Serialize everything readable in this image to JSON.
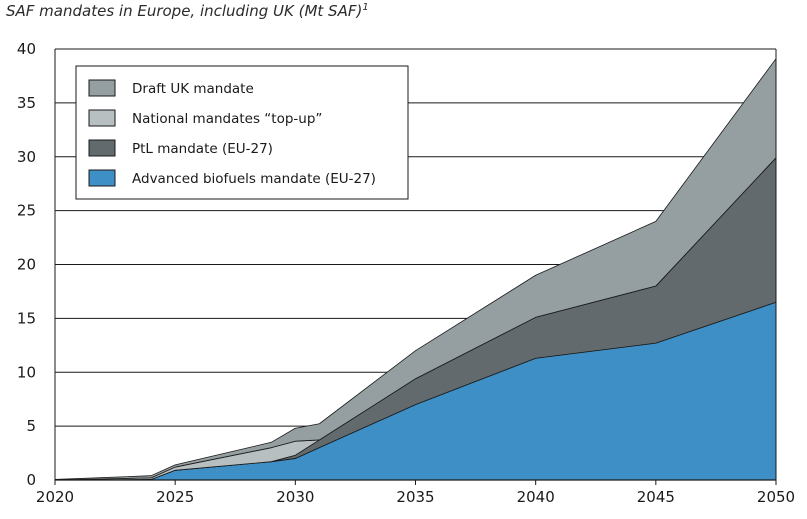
{
  "chart_data": {
    "type": "area",
    "stacked": true,
    "title": "SAF mandates in Europe, including UK (Mt SAF)",
    "title_superscript": "1",
    "xlabel": "",
    "ylabel": "",
    "xlim": [
      2020,
      2050
    ],
    "ylim": [
      0,
      40
    ],
    "x_ticks": [
      "2020",
      "2025",
      "2030",
      "2035",
      "2040",
      "2045",
      "2050"
    ],
    "y_ticks": [
      "0",
      "5",
      "10",
      "15",
      "20",
      "25",
      "30",
      "35",
      "40"
    ],
    "grid": "horizontal",
    "legend_placement": "top-left",
    "series": [
      {
        "name": "Advanced biofuels mandate (EU-27)",
        "color": "#3d8fc6",
        "points": [
          [
            2020,
            0
          ],
          [
            2024,
            0.05
          ],
          [
            2025,
            0.9
          ],
          [
            2029,
            1.7
          ],
          [
            2030,
            2.0
          ],
          [
            2035,
            7.0
          ],
          [
            2040,
            11.3
          ],
          [
            2045,
            12.7
          ],
          [
            2050,
            16.5
          ]
        ]
      },
      {
        "name": "PtL mandate (EU-27)",
        "color": "#626a6d",
        "points": [
          [
            2020,
            0
          ],
          [
            2024,
            0
          ],
          [
            2025,
            0
          ],
          [
            2029,
            0
          ],
          [
            2030,
            0.3
          ],
          [
            2035,
            2.4
          ],
          [
            2040,
            3.8
          ],
          [
            2045,
            5.3
          ],
          [
            2050,
            13.4
          ]
        ]
      },
      {
        "name": "National mandates “top-up”",
        "color": "#b8bfc1",
        "points": [
          [
            2020,
            0
          ],
          [
            2024,
            0.15
          ],
          [
            2025,
            0.3
          ],
          [
            2029,
            1.3
          ],
          [
            2030,
            1.3
          ],
          [
            2031,
            0
          ],
          [
            2035,
            0
          ],
          [
            2040,
            0
          ],
          [
            2045,
            0
          ],
          [
            2050,
            0
          ]
        ]
      },
      {
        "name": "Draft UK mandate",
        "color": "#959fa1",
        "points": [
          [
            2020,
            0.05
          ],
          [
            2024,
            0.2
          ],
          [
            2025,
            0.2
          ],
          [
            2029,
            0.5
          ],
          [
            2030,
            1.2
          ],
          [
            2031,
            1.5
          ],
          [
            2035,
            2.6
          ],
          [
            2040,
            3.9
          ],
          [
            2045,
            6.0
          ],
          [
            2050,
            9.2
          ]
        ]
      }
    ],
    "legend_order": [
      "Draft UK mandate",
      "National mandates “top-up”",
      "PtL mandate (EU-27)",
      "Advanced biofuels mandate (EU-27)"
    ]
  }
}
